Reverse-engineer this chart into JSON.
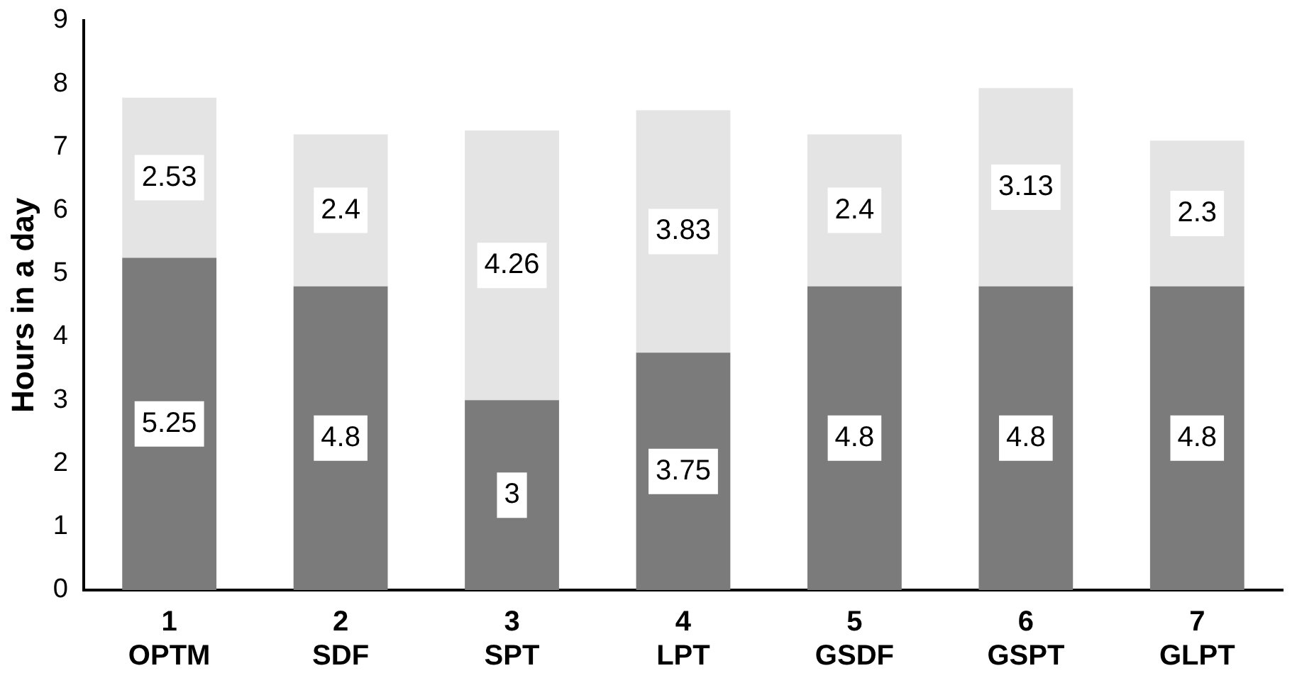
{
  "chart_data": {
    "type": "bar",
    "stacked": true,
    "ylabel": "Hours in a day",
    "categories": [
      "1\nOPTM",
      "2\nSDF",
      "3\nSPT",
      "4\nLPT",
      "5\nGSDF",
      "6\nGSPT",
      "7\nGLPT"
    ],
    "series": [
      {
        "color": "#7b7b7b",
        "values": [
          5.25,
          4.8,
          3,
          3.75,
          4.8,
          4.8,
          4.8
        ]
      },
      {
        "color": "#e4e4e4",
        "values": [
          2.53,
          2.4,
          4.26,
          3.83,
          2.4,
          3.13,
          2.3
        ]
      }
    ],
    "ylim": [
      0,
      9
    ],
    "yticks": [
      0,
      1,
      2,
      3,
      4,
      5,
      6,
      7,
      8,
      9
    ],
    "grid": false,
    "legend": false,
    "data_labels": true
  }
}
